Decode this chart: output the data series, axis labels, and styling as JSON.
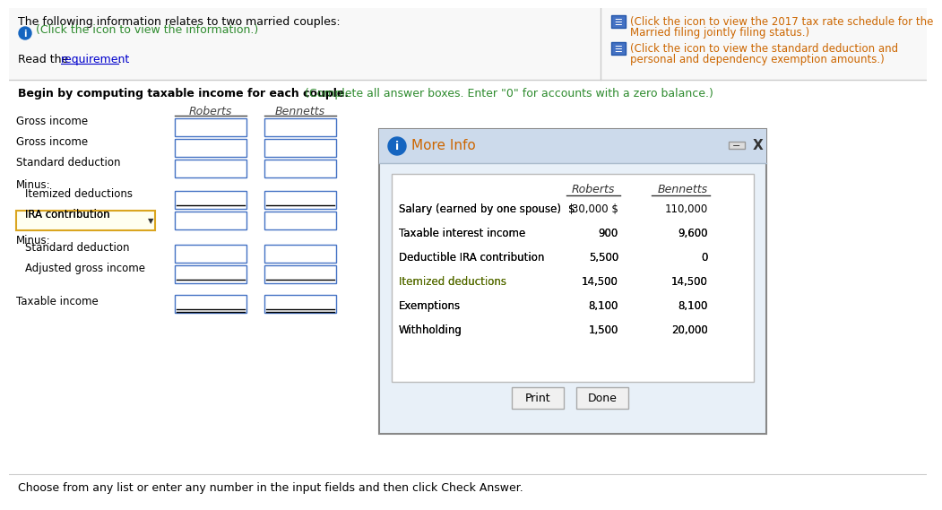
{
  "bg_color": "#ffffff",
  "top_text_line1": "The following information relates to two married couples:",
  "top_text_line2": "(Click the icon to view the information.)",
  "top_right_line1": "(Click the icon to view the 2017 tax rate schedule for the",
  "top_right_line2": "Married filing jointly filing status.)",
  "top_right_line3": "(Click the icon to view the standard deduction and",
  "top_right_line4": "personal and dependency exemption amounts.)",
  "begin_text_black": "Begin by computing taxable income for each couple.",
  "begin_text_green": " (Complete all answer boxes. Enter \"0\" for accounts with a zero balance.)",
  "col_headers": [
    "Roberts",
    "Bennetts"
  ],
  "left_rows": [
    "Gross income",
    "Gross income",
    "Standard deduction"
  ],
  "minus1_label": "Minus:",
  "indented_rows1": [
    "Itemized deductions",
    "IRA contribution"
  ],
  "minus2_label": "Minus:",
  "indented_rows2": [
    "Standard deduction",
    "Adjusted gross income"
  ],
  "taxable_label": "Taxable income",
  "bottom_text": "Choose from any list or enter any number in the input fields and then click Check Answer.",
  "modal_title": "More Info",
  "modal_rows": [
    [
      "Salary (earned by one spouse)",
      "$",
      "30,000 $",
      "110,000"
    ],
    [
      "Taxable interest income",
      "",
      "900",
      "9,600"
    ],
    [
      "Deductible IRA contribution",
      "",
      "5,500",
      "0"
    ],
    [
      "Itemized deductions",
      "",
      "14,500",
      "14,500"
    ],
    [
      "Exemptions",
      "",
      "8,100",
      "8,100"
    ],
    [
      "Withholding",
      "",
      "1,500",
      "20,000"
    ]
  ],
  "modal_col1": "Roberts",
  "modal_col2": "Bennetts",
  "green_color": "#2E8B2E",
  "blue_color": "#1565C0",
  "link_color": "#0000CC",
  "orange_color": "#CC6600",
  "modal_title_color": "#CC6600",
  "modal_bg": "#e8f0f8",
  "modal_titlebar_bg": "#ccdaeb",
  "input_border": "#4472C4",
  "ira_highlight_border": "#DAA520",
  "ira_highlight_bg": "#FFFFF0",
  "itemized_color": "#556B00"
}
